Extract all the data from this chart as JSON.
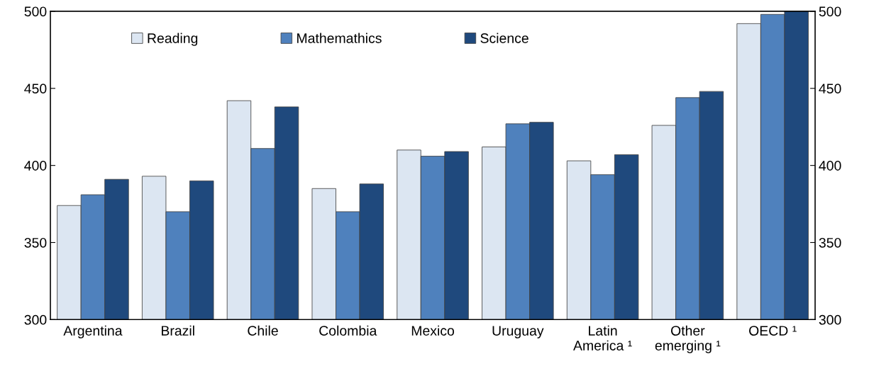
{
  "chart_data": {
    "type": "bar",
    "categories": [
      "Argentina",
      "Brazil",
      "Chile",
      "Colombia",
      "Mexico",
      "Uruguay",
      "Latin\nAmerica ¹",
      "Other\nemerging ¹",
      "OECD ¹"
    ],
    "series": [
      {
        "name": "Reading",
        "color": "#dce6f2",
        "values": [
          374,
          393,
          442,
          385,
          410,
          412,
          403,
          426,
          492
        ]
      },
      {
        "name": "Mathemathics",
        "color": "#4f81bd",
        "values": [
          381,
          370,
          411,
          370,
          406,
          427,
          394,
          444,
          498
        ]
      },
      {
        "name": "Science",
        "color": "#1f497d",
        "values": [
          391,
          390,
          438,
          388,
          409,
          428,
          407,
          448,
          500
        ]
      }
    ],
    "ylim": [
      300,
      500
    ],
    "yticks": [
      300,
      350,
      400,
      450,
      500
    ],
    "y2lim": [
      300,
      500
    ],
    "y2ticks": [
      300,
      350,
      400,
      450,
      500
    ],
    "grid": false,
    "legend": "top left"
  }
}
